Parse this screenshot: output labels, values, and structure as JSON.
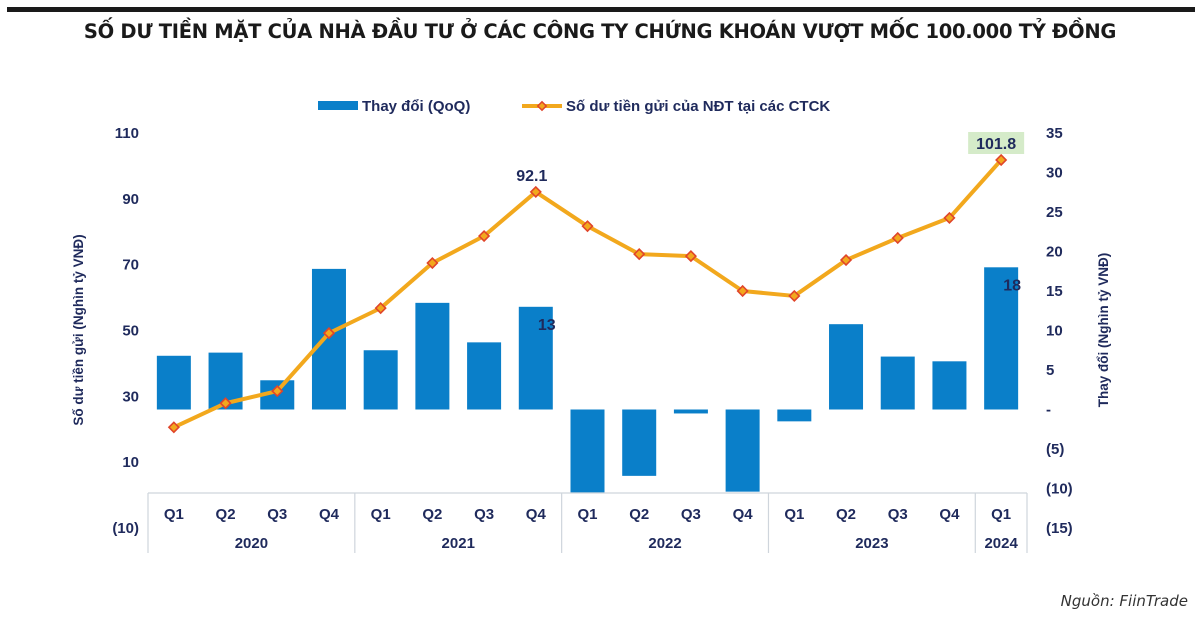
{
  "header": {
    "title": "SỐ DƯ TIỀN MẶT CỦA NHÀ ĐẦU TƯ Ở CÁC CÔNG TY CHỨNG KHOÁN VƯỢT MỐC 100.000 TỶ ĐỒNG"
  },
  "footer": {
    "source": "Nguồn: FiinTrade"
  },
  "colors": {
    "bar": "#0a7fc9",
    "line": "#f2a81d",
    "marker_edge": "#e0452a",
    "text": "#1f2a5c",
    "highlight_bg": "#d5ebc9"
  },
  "chart_data": {
    "type": "bar+line",
    "title": "SỐ DƯ TIỀN MẶT CỦA NHÀ ĐẦU TƯ Ở CÁC CÔNG TY CHỨNG KHOÁN VƯỢT MỐC 100.000 TỶ ĐỒNG",
    "categories": [
      "Q1",
      "Q2",
      "Q3",
      "Q4",
      "Q1",
      "Q2",
      "Q3",
      "Q4",
      "Q1",
      "Q2",
      "Q3",
      "Q4",
      "Q1",
      "Q2",
      "Q3",
      "Q4",
      "Q1"
    ],
    "year_groups": [
      {
        "label": "2020",
        "count": 4
      },
      {
        "label": "2021",
        "count": 4
      },
      {
        "label": "2022",
        "count": 4
      },
      {
        "label": "2023",
        "count": 4
      },
      {
        "label": "2024",
        "count": 1
      }
    ],
    "series": [
      {
        "name": "Thay đổi (QoQ)",
        "type": "bar",
        "axis": "right",
        "values": [
          6.8,
          7.2,
          3.7,
          17.8,
          7.5,
          13.5,
          8.5,
          13,
          -10.5,
          -8.4,
          -0.5,
          -10.4,
          -1.5,
          10.8,
          6.7,
          6.1,
          18
        ],
        "data_labels": {
          "7": "13",
          "16": "18"
        }
      },
      {
        "name": "Số dư tiền gửi của NĐT tại các CTCK",
        "type": "line",
        "axis": "left",
        "values": [
          20.6,
          27.9,
          31.6,
          49.2,
          56.8,
          70.5,
          78.7,
          92.1,
          81.7,
          73.2,
          72.6,
          62.0,
          60.5,
          71.4,
          78.1,
          84.2,
          101.8
        ],
        "data_labels": {
          "7": "92.1",
          "16": "101.8"
        }
      }
    ],
    "y_left": {
      "label": "Số dư tiền gửi (Nghìn tỷ VNĐ)",
      "range": [
        -10,
        110
      ],
      "ticks": [
        110,
        90,
        70,
        50,
        30,
        10,
        -10
      ],
      "tick_labels": [
        "110",
        "90",
        "70",
        "50",
        "30",
        "10",
        "(10)"
      ]
    },
    "y_right": {
      "label": "Thay đổi (Nghìn tỷ VNĐ)",
      "range": [
        -15,
        35
      ],
      "ticks": [
        35,
        30,
        25,
        20,
        15,
        10,
        5,
        0,
        -5,
        -10,
        -15
      ],
      "tick_labels": [
        "35",
        "30",
        "25",
        "20",
        "15",
        "10",
        "5",
        "-",
        "(5)",
        "(10)",
        "(15)"
      ]
    },
    "legend": {
      "position": "top-center",
      "entries": [
        "Thay đổi (QoQ)",
        "Số dư tiền gửi của NĐT tại các CTCK"
      ]
    },
    "grid": false
  }
}
